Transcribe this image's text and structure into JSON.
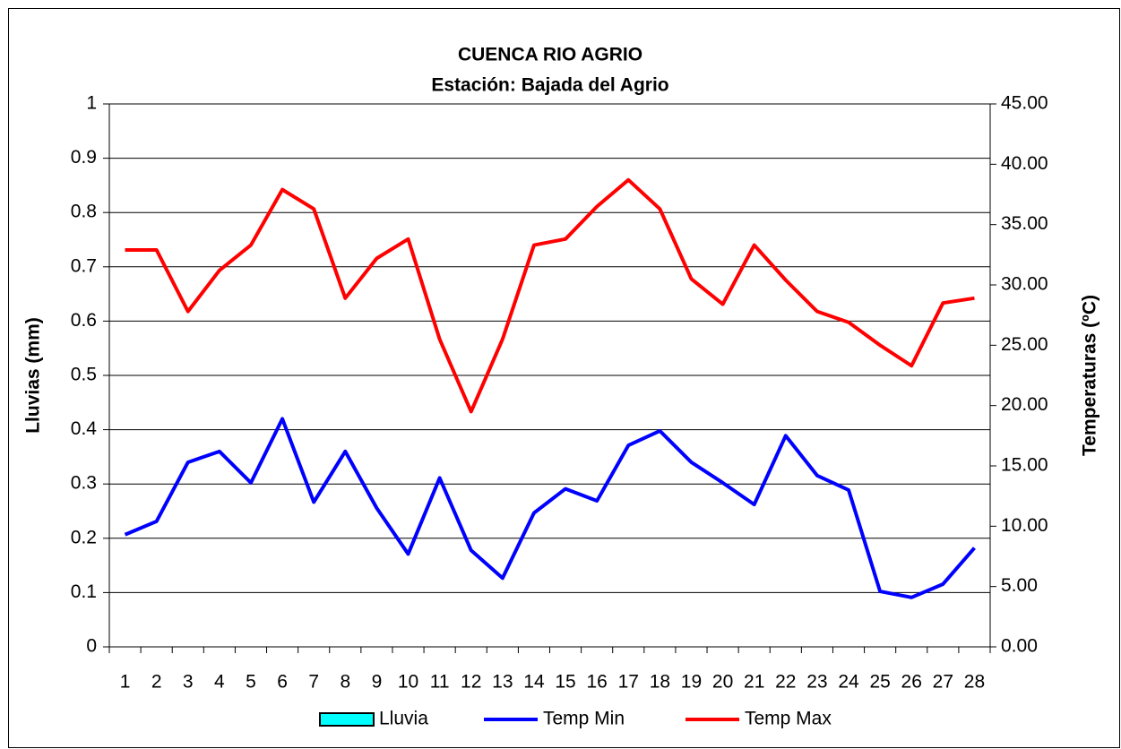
{
  "chart_data": {
    "type": "line",
    "title": "CUENCA RIO AGRIO",
    "subtitle": "Estación: Bajada del Agrio",
    "ylabel": "Lluvias (mm)",
    "y2label": "Temperaturas (ºC)",
    "categories": [
      "1",
      "2",
      "3",
      "4",
      "5",
      "6",
      "7",
      "8",
      "9",
      "10",
      "11",
      "12",
      "13",
      "14",
      "15",
      "16",
      "17",
      "18",
      "19",
      "20",
      "21",
      "22",
      "23",
      "24",
      "25",
      "26",
      "27",
      "28"
    ],
    "series": [
      {
        "name": "Lluvia",
        "type": "bar",
        "color": "#00ffff",
        "values": [
          0,
          0,
          0,
          0,
          0,
          0,
          0,
          0,
          0,
          0,
          0,
          0,
          0,
          0,
          0,
          0,
          0,
          0,
          0,
          0,
          0,
          0,
          0,
          0,
          0,
          0,
          0,
          0
        ]
      },
      {
        "name": "Temp Min",
        "axis": "y2",
        "color": "#0000ff",
        "values": [
          9.3,
          10.4,
          15.3,
          16.2,
          13.6,
          18.9,
          12.0,
          16.2,
          11.5,
          7.7,
          14.0,
          8.0,
          5.7,
          11.1,
          13.1,
          12.1,
          16.7,
          17.9,
          15.3,
          13.6,
          11.8,
          17.5,
          14.2,
          13.0,
          4.6,
          4.1,
          5.2,
          8.2
        ]
      },
      {
        "name": "Temp Max",
        "axis": "y2",
        "color": "#ff0000",
        "values": [
          32.9,
          32.9,
          27.8,
          31.2,
          33.3,
          37.9,
          36.3,
          28.9,
          32.2,
          33.8,
          25.5,
          19.5,
          25.5,
          33.3,
          33.8,
          36.5,
          38.7,
          36.3,
          30.5,
          28.4,
          33.3,
          30.4,
          27.8,
          26.9,
          25.0,
          23.3,
          28.5,
          28.9
        ]
      }
    ],
    "ylim": [
      0,
      1
    ],
    "yticks": [
      0,
      0.1,
      0.2,
      0.3,
      0.4,
      0.5,
      0.6,
      0.7,
      0.8,
      0.9,
      1
    ],
    "y2lim": [
      0,
      45
    ],
    "y2ticks": [
      {
        "value": 0,
        "label": "0.00"
      },
      {
        "value": 5,
        "label": "5.00"
      },
      {
        "value": 10,
        "label": "10.00"
      },
      {
        "value": 15,
        "label": "15.00"
      },
      {
        "value": 20,
        "label": "20.00"
      },
      {
        "value": 25,
        "label": "25.00"
      },
      {
        "value": 30,
        "label": "30.00"
      },
      {
        "value": 35,
        "label": "35.00"
      },
      {
        "value": 40,
        "label": "40.00"
      },
      {
        "value": 45,
        "label": "45.00"
      }
    ],
    "grid": true,
    "legend": "bottom"
  }
}
